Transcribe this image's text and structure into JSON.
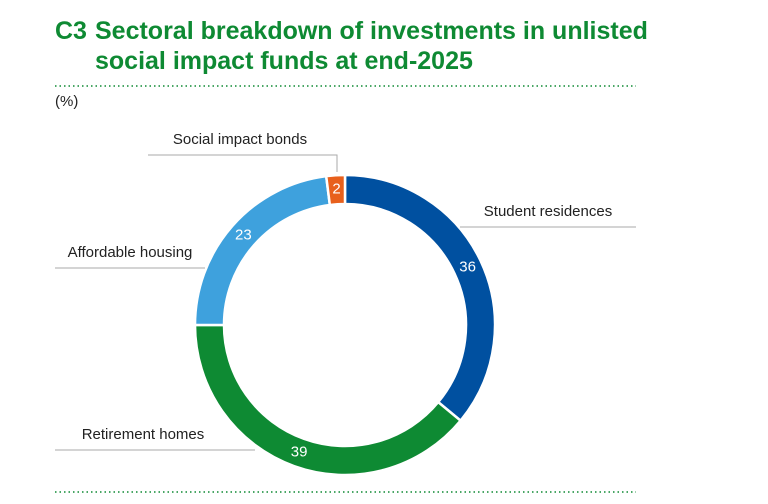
{
  "chart_data": {
    "type": "donut",
    "chart_id": "C3",
    "title": "Sectoral breakdown of investments in unlisted social impact funds at end-2025",
    "unit_label": "(%)",
    "categories": [
      "Student residences",
      "Retirement homes",
      "Affordable housing",
      "Social impact bonds"
    ],
    "values": [
      36,
      39,
      23,
      2
    ],
    "colors": [
      "#0050a0",
      "#0e8a33",
      "#3ea1dd",
      "#e8601c"
    ]
  }
}
